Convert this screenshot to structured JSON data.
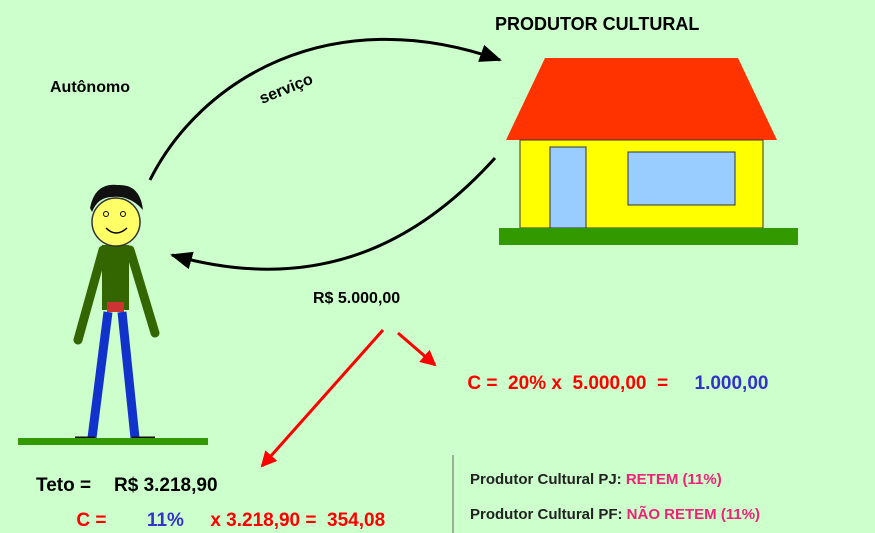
{
  "labels": {
    "autonomo": "Autônomo",
    "servico": "serviço",
    "produtor": "PRODUTOR CULTURAL",
    "payment": "R$ 5.000,00"
  },
  "calc_main": {
    "lhs": "C =  20% x  5.000,00  =",
    "result": "1.000,00"
  },
  "ceiling": {
    "label": "Teto =",
    "value": "R$ 3.218,90"
  },
  "calc_ceiling": {
    "lhs": "C =",
    "rate": "11%",
    "rest": "x 3.218,90 =  354,08"
  },
  "rules": [
    {
      "label": "Produtor Cultural PJ:",
      "value": "RETEM (11%)"
    },
    {
      "label": "Produtor Cultural PF:",
      "value": "NÃO RETEM (11%)"
    }
  ]
}
